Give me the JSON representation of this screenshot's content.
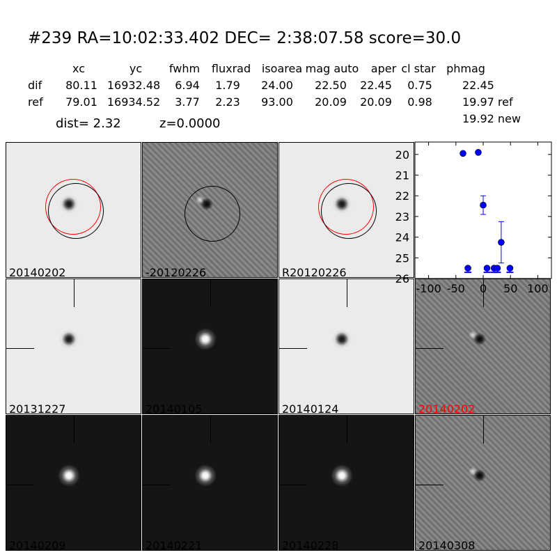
{
  "header": {
    "title": "#239   RA=10:02:33.402 DEC= 2:38:07.58      score=30.0"
  },
  "table": {
    "columns": [
      "xc",
      "yc",
      "fwhm",
      "fluxrad",
      "isoarea",
      "mag auto",
      "aper",
      "cl star",
      "phmag"
    ],
    "rows": [
      {
        "label": "dif",
        "values": [
          "80.11",
          "16932.48",
          "6.94",
          "1.79",
          "24.00",
          "22.50",
          "22.45",
          "0.75",
          "22.45"
        ]
      },
      {
        "label": "ref",
        "values": [
          "79.01",
          "16934.52",
          "3.77",
          "2.23",
          "93.00",
          "20.09",
          "20.09",
          "0.98",
          "19.97 ref"
        ]
      }
    ],
    "extra_phmag": "19.92 new",
    "dist": "dist=  2.32",
    "z": "z=0.0000"
  },
  "stamps": [
    {
      "label": "20140202",
      "style": "light",
      "circles": [
        "red",
        "black"
      ]
    },
    {
      "label": "-20120226",
      "style": "diff",
      "circles": [
        "black"
      ]
    },
    {
      "label": "R20120226",
      "style": "light",
      "circles": [
        "red",
        "black"
      ]
    },
    {
      "label": "20131227",
      "style": "light",
      "cross": true
    },
    {
      "label": "20140105",
      "style": "dark",
      "cross": true
    },
    {
      "label": "20140124",
      "style": "light",
      "cross": true
    },
    {
      "label": "20140202",
      "style": "diff",
      "cross": true,
      "label_color": "#ff0000"
    },
    {
      "label": "20140209",
      "style": "dark",
      "cross": true
    },
    {
      "label": "20140221",
      "style": "dark",
      "cross": true
    },
    {
      "label": "20140228",
      "style": "dark",
      "cross": true
    },
    {
      "label": "20140308",
      "style": "diff",
      "cross": true
    }
  ],
  "chart_data": {
    "type": "scatter",
    "xlim": [
      -125,
      125
    ],
    "ylim": [
      26,
      19.4
    ],
    "y_inverted": true,
    "xticks": [
      "-100",
      "-50",
      "0",
      "50",
      "100"
    ],
    "yticks": [
      "20",
      "21",
      "22",
      "23",
      "24",
      "25",
      "26"
    ],
    "marker_color": "#0000ff",
    "points": [
      {
        "x": -37,
        "y": 19.95
      },
      {
        "x": -9,
        "y": 19.9
      },
      {
        "x": 0,
        "y": 22.45,
        "err": 0.45
      },
      {
        "x": 33,
        "y": 24.25,
        "err": 1.0
      },
      {
        "x": -28,
        "y": 25.5,
        "limit": true
      },
      {
        "x": 7,
        "y": 25.5,
        "limit": true
      },
      {
        "x": 20,
        "y": 25.5,
        "limit": true
      },
      {
        "x": 26,
        "y": 25.5,
        "limit": true
      },
      {
        "x": 49,
        "y": 25.5,
        "limit": true
      }
    ]
  }
}
